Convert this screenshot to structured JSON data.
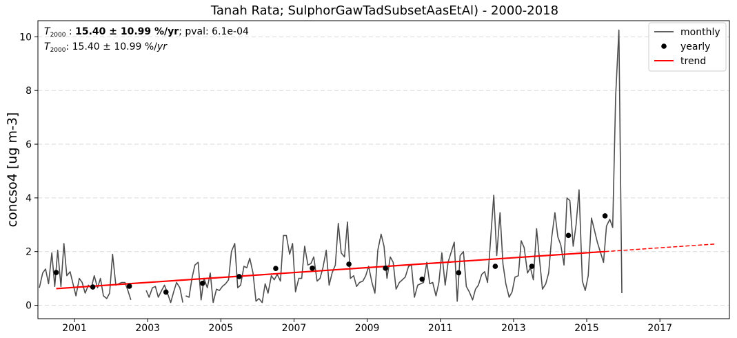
{
  "chart_data": {
    "type": "line",
    "title": "Tanah Rata; SulphorGawTadSubsetAasEtAl) - 2000-2018",
    "xlabel": "",
    "ylabel": "concso4 [ug m-3]",
    "xlim": [
      2000.0,
      2018.9
    ],
    "ylim": [
      -0.5,
      10.6
    ],
    "x_ticks": [
      2001,
      2003,
      2005,
      2007,
      2009,
      2011,
      2013,
      2015,
      2017
    ],
    "x_tick_labels": [
      "2001",
      "2003",
      "2005",
      "2007",
      "2009",
      "2011",
      "2013",
      "2015",
      "2017"
    ],
    "y_ticks": [
      0,
      2,
      4,
      6,
      8,
      10
    ],
    "y_tick_labels": [
      "0",
      "2",
      "4",
      "6",
      "8",
      "10"
    ],
    "grid": "horizontal dashed",
    "legend": {
      "position": "top-right",
      "entries": [
        {
          "label": "monthly",
          "kind": "line",
          "color": "#4d4d4d"
        },
        {
          "label": "yearly",
          "kind": "marker",
          "color": "#000000"
        },
        {
          "label": "trend",
          "kind": "line",
          "color": "#ff0000"
        }
      ]
    },
    "annotations": {
      "line1_symbol": "T",
      "line1_subscript": "2000",
      "line1_value": "15.40 ± 10.99 %/yr",
      "line1_suffix": "; pval: 6.1e-04",
      "line2_symbol": "T",
      "line2_subscript": "2000",
      "line2_value": ": 15.40 ± 10.99 %/",
      "line2_unit": "yr"
    },
    "series": [
      {
        "name": "monthly",
        "color": "#4d4d4d",
        "segments": [
          {
            "x": [
              2000.04,
              2000.13,
              2000.21,
              2000.29,
              2000.38,
              2000.46,
              2000.54,
              2000.63,
              2000.71,
              2000.79,
              2000.88,
              2000.96,
              2001.04,
              2001.13,
              2001.21,
              2001.29,
              2001.38,
              2001.46,
              2001.54,
              2001.63,
              2001.71,
              2001.79,
              2001.88,
              2001.96,
              2002.04,
              2002.13,
              2002.21,
              2002.29,
              2002.38,
              2002.46,
              2002.54,
              2002.63,
              2002.71,
              2002.79,
              2002.88,
              2002.96,
              2003.04,
              2003.13,
              2003.21,
              2003.29,
              2003.38,
              2003.46,
              2003.54,
              2003.63,
              2003.71,
              2003.79,
              2003.88,
              2003.96
            ],
            "y": [
              0.65,
              1.2,
              1.35,
              0.8,
              1.95,
              0.7,
              2.05,
              0.7,
              2.3,
              1.1,
              1.25,
              0.8,
              0.35,
              1.0,
              0.85,
              0.45,
              0.75,
              0.65,
              1.1,
              0.65,
              1.0,
              0.35,
              0.25,
              0.45,
              1.9,
              0.75,
              0.8,
              0.85,
              0.85,
              0.55,
              0.2,
              null,
              null,
              null,
              null,
              0.55,
              0.3,
              0.65,
              0.7,
              0.3,
              0.55,
              0.75,
              0.45,
              0.1,
              0.5,
              0.85,
              0.65,
              0.1
            ]
          },
          {
            "x": [
              2004.04,
              2004.13,
              2004.21,
              2004.29,
              2004.38,
              2004.46,
              2004.54,
              2004.63,
              2004.71,
              2004.79,
              2004.88,
              2004.96,
              2005.04,
              2005.13,
              2005.21,
              2005.29,
              2005.38,
              2005.46,
              2005.54,
              2005.63,
              2005.71,
              2005.79,
              2005.88,
              2005.96,
              2006.04,
              2006.13,
              2006.21,
              2006.29,
              2006.38,
              2006.46,
              2006.54,
              2006.63,
              2006.71,
              2006.79,
              2006.88,
              2006.96,
              2007.04,
              2007.13,
              2007.21,
              2007.29,
              2007.38,
              2007.46,
              2007.54,
              2007.63,
              2007.71,
              2007.79,
              2007.88,
              2007.96,
              2008.04,
              2008.13,
              2008.21,
              2008.29,
              2008.38,
              2008.46,
              2008.54,
              2008.63,
              2008.71,
              2008.79,
              2008.88,
              2008.96,
              2009.04,
              2009.13,
              2009.21,
              2009.29,
              2009.38,
              2009.46,
              2009.54,
              2009.63,
              2009.71,
              2009.79,
              2009.88,
              2009.96,
              2010.04,
              2010.13,
              2010.21,
              2010.29,
              2010.38,
              2010.46,
              2010.54,
              2010.63,
              2010.71,
              2010.79,
              2010.88,
              2010.96,
              2011.04,
              2011.13,
              2011.21,
              2011.29,
              2011.38,
              2011.46,
              2011.54,
              2011.63,
              2011.71,
              2011.79,
              2011.88,
              2011.96,
              2012.04,
              2012.13,
              2012.21,
              2012.29,
              2012.38,
              2012.46,
              2012.54,
              2012.63,
              2012.71,
              2012.79,
              2012.88,
              2012.96,
              2013.04,
              2013.13,
              2013.21,
              2013.29,
              2013.38,
              2013.46,
              2013.54,
              2013.63,
              2013.71,
              2013.79,
              2013.88,
              2013.96,
              2014.04,
              2014.13,
              2014.21,
              2014.29,
              2014.38,
              2014.46,
              2014.54,
              2014.63,
              2014.71,
              2014.79,
              2014.88,
              2014.96,
              2015.04,
              2015.13,
              2015.21,
              2015.29,
              2015.38,
              2015.46,
              2015.54,
              2015.63,
              2015.71,
              2015.79,
              2015.88,
              2015.96
            ],
            "y": [
              0.35,
              0.3,
              1.0,
              1.5,
              1.6,
              0.2,
              1.0,
              0.65,
              1.2,
              0.1,
              0.6,
              0.55,
              0.7,
              0.8,
              0.95,
              2.0,
              2.3,
              0.65,
              0.75,
              1.45,
              1.4,
              1.75,
              1.2,
              0.15,
              0.25,
              0.1,
              0.8,
              0.45,
              1.1,
              0.95,
              1.15,
              0.9,
              2.6,
              2.6,
              1.9,
              2.3,
              0.5,
              1.0,
              1.0,
              2.2,
              1.5,
              1.55,
              1.8,
              0.9,
              1.0,
              1.4,
              2.05,
              0.75,
              1.2,
              1.5,
              3.05,
              1.95,
              1.8,
              3.1,
              1.0,
              1.1,
              0.7,
              0.85,
              0.9,
              1.1,
              1.45,
              0.85,
              0.45,
              2.05,
              2.65,
              2.2,
              1.0,
              1.8,
              1.6,
              0.6,
              0.85,
              0.95,
              1.05,
              1.45,
              1.5,
              0.3,
              0.75,
              0.8,
              0.85,
              1.6,
              0.8,
              0.85,
              0.35,
              0.85,
              1.95,
              0.75,
              1.6,
              1.95,
              2.35,
              0.15,
              1.85,
              2.0,
              0.7,
              0.5,
              0.2,
              0.6,
              0.75,
              1.15,
              1.25,
              0.85,
              2.6,
              4.1,
              1.85,
              3.45,
              1.55,
              0.8,
              0.3,
              0.5,
              1.05,
              1.1,
              2.4,
              2.15,
              1.2,
              1.4,
              0.95,
              2.85,
              1.7,
              0.6,
              0.8,
              1.2,
              2.5,
              3.45,
              2.55,
              2.25,
              1.5,
              4.0,
              3.9,
              2.2,
              3.0,
              4.3,
              0.9,
              0.55,
              1.1,
              3.25,
              2.8,
              2.35,
              1.95,
              1.6,
              2.95,
              3.2,
              2.9,
              7.8,
              10.25,
              0.45
            ]
          }
        ]
      },
      {
        "name": "yearly",
        "color": "#000000",
        "x": [
          2000.5,
          2001.5,
          2002.5,
          2003.5,
          2004.5,
          2005.5,
          2006.5,
          2007.5,
          2008.5,
          2009.5,
          2010.5,
          2011.5,
          2012.5,
          2013.5,
          2014.5,
          2015.5
        ],
        "y": [
          1.22,
          0.68,
          0.71,
          0.49,
          0.82,
          1.07,
          1.37,
          1.38,
          1.53,
          1.38,
          0.97,
          1.21,
          1.45,
          1.45,
          2.6,
          3.33
        ]
      },
      {
        "name": "trend",
        "color": "#ff0000",
        "x": [
          2000.5,
          2015.5
        ],
        "y": [
          0.62,
          2.0
        ]
      },
      {
        "name": "trend-extrapolation",
        "color": "#ff0000",
        "x": [
          2015.5,
          2018.5
        ],
        "y": [
          2.0,
          2.28
        ]
      }
    ]
  }
}
